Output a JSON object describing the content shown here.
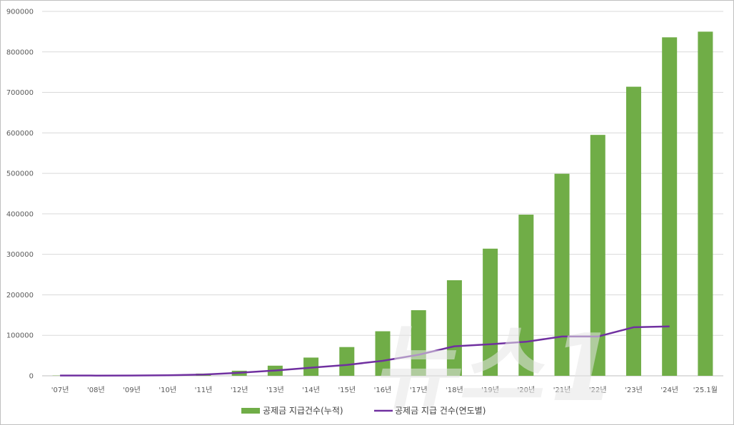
{
  "chart_data": {
    "type": "bar",
    "title": "",
    "xlabel": "",
    "ylabel": "",
    "ylim": [
      0,
      900000
    ],
    "yticks": [
      0,
      100000,
      200000,
      300000,
      400000,
      500000,
      600000,
      700000,
      800000,
      900000
    ],
    "ytick_labels": [
      "0",
      "100000",
      "200000",
      "300000",
      "400000",
      "500000",
      "600000",
      "700000",
      "800000",
      "900000"
    ],
    "grid": true,
    "legend_position": "bottom",
    "categories": [
      "'07년",
      "'08년",
      "'09년",
      "'10년",
      "'11년",
      "'12년",
      "'13년",
      "'14년",
      "'15년",
      "'16년",
      "'17년",
      "'18년",
      "'19년",
      "'20년",
      "'21년",
      "'22년",
      "'23년",
      "'24년",
      "'25.1월"
    ],
    "series": [
      {
        "name": "공제금 지급건수(누적)",
        "type": "bar",
        "color": "#70ad47",
        "values": [
          700,
          1200,
          1900,
          2800,
          5500,
          12500,
          25000,
          45000,
          71000,
          110000,
          162000,
          236000,
          314000,
          398000,
          499000,
          595000,
          714000,
          836000,
          850000
        ]
      },
      {
        "name": "공제금 지급 건수(연도별)",
        "type": "line",
        "color": "#7030a0",
        "values": [
          700,
          500,
          700,
          1400,
          3000,
          7500,
          13000,
          20000,
          27000,
          37000,
          52000,
          73000,
          78000,
          84000,
          97000,
          97000,
          120000,
          122000,
          null
        ]
      }
    ]
  },
  "watermark": {
    "text": "뉴스1"
  }
}
